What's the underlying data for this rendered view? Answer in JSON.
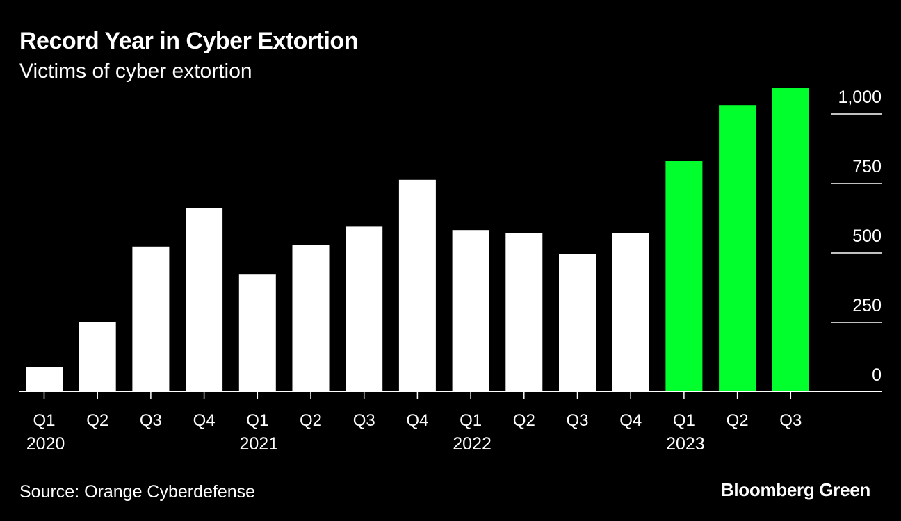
{
  "header": {
    "title": "Record Year in Cyber Extortion",
    "subtitle": "Victims of cyber extortion"
  },
  "footer": {
    "source": "Source: Orange Cyberdefense",
    "brand": "Bloomberg Green"
  },
  "colors": {
    "background": "#000000",
    "bar_default": "#ffffff",
    "bar_highlight": "#00ff2c",
    "text": "#ffffff"
  },
  "chart_data": {
    "type": "bar",
    "title": "Record Year in Cyber Extortion",
    "subtitle": "Victims of cyber extortion",
    "xlabel": "",
    "ylabel": "",
    "categories": [
      "Q1",
      "Q2",
      "Q3",
      "Q4",
      "Q1",
      "Q2",
      "Q3",
      "Q4",
      "Q1",
      "Q2",
      "Q3",
      "Q4",
      "Q1",
      "Q2",
      "Q3"
    ],
    "year_labels": [
      "2020",
      "",
      "",
      "",
      "2021",
      "",
      "",
      "",
      "2022",
      "",
      "",
      "",
      "2023",
      "",
      ""
    ],
    "values": [
      90,
      250,
      523,
      661,
      422,
      530,
      594,
      763,
      582,
      570,
      497,
      570,
      830,
      1032,
      1095
    ],
    "highlight": [
      false,
      false,
      false,
      false,
      false,
      false,
      false,
      false,
      false,
      false,
      false,
      false,
      true,
      true,
      true
    ],
    "ylim": [
      0,
      1100
    ],
    "yticks": [
      0,
      250,
      500,
      750,
      1000
    ],
    "ytick_labels": [
      "0",
      "250",
      "500",
      "750",
      "1,000"
    ],
    "axis_position": "right",
    "grid": false
  }
}
